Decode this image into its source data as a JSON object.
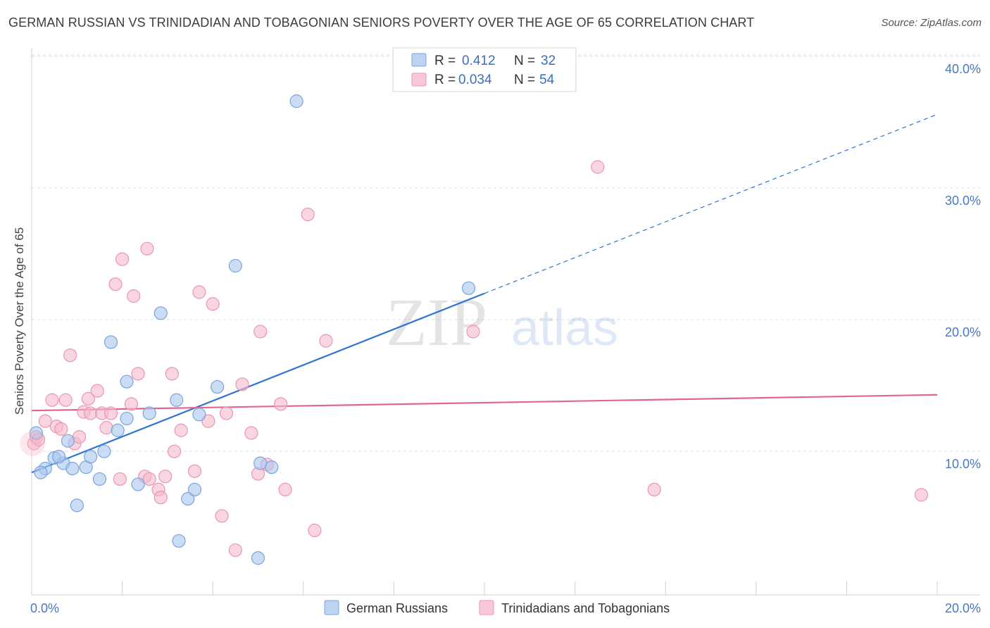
{
  "title": "GERMAN RUSSIAN VS TRINIDADIAN AND TOBAGONIAN SENIORS POVERTY OVER THE AGE OF 65 CORRELATION CHART",
  "source": "Source: ZipAtlas.com",
  "watermark": {
    "zip": "ZIP",
    "atlas": "atlas"
  },
  "chart_data": {
    "type": "scatter",
    "xlabel": "",
    "ylabel": "Seniors Poverty Over the Age of 65",
    "xlim": [
      0,
      20
    ],
    "ylim": [
      0,
      40
    ],
    "x_tick_labels": [
      "0.0%",
      "20.0%"
    ],
    "y_ticks": [
      10,
      20,
      30,
      40
    ],
    "y_tick_labels": [
      "10.0%",
      "20.0%",
      "30.0%",
      "40.0%"
    ],
    "grid": true,
    "legend": {
      "placement": "top-center",
      "rows": [
        {
          "r_label": "R =",
          "r_value": "0.412",
          "n_label": "N =",
          "n_value": "32"
        },
        {
          "r_label": "R =",
          "r_value": "0.034",
          "n_label": "N =",
          "n_value": "54"
        }
      ]
    },
    "series": [
      {
        "name": "German Russians",
        "color": "#a9c6ee",
        "stroke": "#7aa4dc",
        "trend_color": "#2f74d0",
        "trend": {
          "x0": 0,
          "y0": 9.3,
          "x1": 20,
          "y1": 36.5,
          "solid_until": 10
        },
        "points": [
          [
            0.1,
            12.3
          ],
          [
            0.3,
            9.6
          ],
          [
            0.5,
            10.4
          ],
          [
            0.7,
            10.0
          ],
          [
            0.6,
            10.5
          ],
          [
            0.8,
            11.7
          ],
          [
            0.9,
            9.6
          ],
          [
            1.0,
            6.8
          ],
          [
            1.2,
            9.7
          ],
          [
            1.3,
            10.5
          ],
          [
            1.5,
            8.8
          ],
          [
            1.6,
            10.9
          ],
          [
            1.75,
            19.2
          ],
          [
            1.9,
            12.5
          ],
          [
            2.1,
            13.4
          ],
          [
            2.1,
            16.2
          ],
          [
            2.35,
            8.4
          ],
          [
            2.6,
            13.8
          ],
          [
            2.85,
            21.4
          ],
          [
            3.2,
            14.8
          ],
          [
            3.25,
            4.1
          ],
          [
            3.45,
            7.3
          ],
          [
            3.6,
            8.0
          ],
          [
            3.7,
            13.7
          ],
          [
            4.1,
            15.8
          ],
          [
            4.5,
            25.0
          ],
          [
            5.0,
            2.8
          ],
          [
            5.05,
            10.0
          ],
          [
            5.3,
            9.7
          ],
          [
            5.85,
            37.5
          ],
          [
            9.65,
            23.3
          ],
          [
            0.2,
            9.3
          ]
        ]
      },
      {
        "name": "Trinidadians and Tobagonians",
        "color": "#f5b9cb",
        "stroke": "#ec95b0",
        "trend_color": "#e0668f",
        "trend": {
          "x0": 0,
          "y0": 14.0,
          "x1": 20,
          "y1": 15.2,
          "solid_until": 20
        },
        "points": [
          [
            0.05,
            11.5
          ],
          [
            0.1,
            12.0
          ],
          [
            0.3,
            13.2
          ],
          [
            0.45,
            14.8
          ],
          [
            0.55,
            12.8
          ],
          [
            0.65,
            12.6
          ],
          [
            0.75,
            14.8
          ],
          [
            0.85,
            18.2
          ],
          [
            0.95,
            11.5
          ],
          [
            1.05,
            12.0
          ],
          [
            1.15,
            13.9
          ],
          [
            1.25,
            14.9
          ],
          [
            1.3,
            13.8
          ],
          [
            1.45,
            15.5
          ],
          [
            1.55,
            13.8
          ],
          [
            1.65,
            12.7
          ],
          [
            1.75,
            13.8
          ],
          [
            1.85,
            23.6
          ],
          [
            1.95,
            8.8
          ],
          [
            2.0,
            25.5
          ],
          [
            2.2,
            14.5
          ],
          [
            2.25,
            22.7
          ],
          [
            2.35,
            16.8
          ],
          [
            2.5,
            9.0
          ],
          [
            2.55,
            26.3
          ],
          [
            2.6,
            8.8
          ],
          [
            2.8,
            8.0
          ],
          [
            2.85,
            7.4
          ],
          [
            2.95,
            9.0
          ],
          [
            3.1,
            16.8
          ],
          [
            3.15,
            10.9
          ],
          [
            3.3,
            12.5
          ],
          [
            3.6,
            9.4
          ],
          [
            3.7,
            23.0
          ],
          [
            3.9,
            13.2
          ],
          [
            4.0,
            22.1
          ],
          [
            4.2,
            6.0
          ],
          [
            4.3,
            13.8
          ],
          [
            4.5,
            3.4
          ],
          [
            4.65,
            16.0
          ],
          [
            4.85,
            12.3
          ],
          [
            5.0,
            9.2
          ],
          [
            5.05,
            20.0
          ],
          [
            5.2,
            9.9
          ],
          [
            5.5,
            14.5
          ],
          [
            5.6,
            8.0
          ],
          [
            6.1,
            28.9
          ],
          [
            6.25,
            4.9
          ],
          [
            6.5,
            19.3
          ],
          [
            9.75,
            20.0
          ],
          [
            12.5,
            32.5
          ],
          [
            13.75,
            8.0
          ],
          [
            19.65,
            7.6
          ],
          [
            0.15,
            11.8
          ]
        ]
      }
    ]
  }
}
